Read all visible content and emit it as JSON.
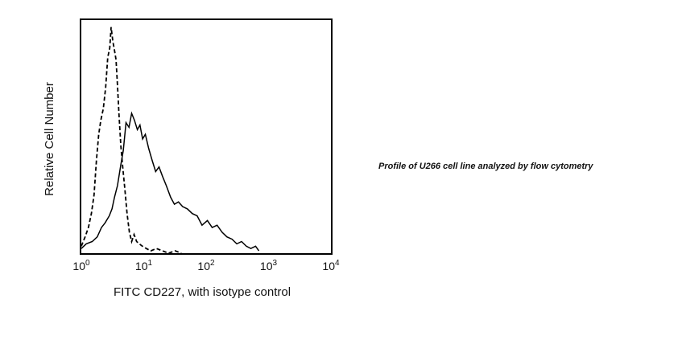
{
  "chart_data": {
    "type": "histogram",
    "xscale": "log",
    "xlim": [
      1,
      10000
    ],
    "xticks": [
      {
        "base": "10",
        "exp": "0"
      },
      {
        "base": "10",
        "exp": "1"
      },
      {
        "base": "10",
        "exp": "2"
      },
      {
        "base": "10",
        "exp": "3"
      },
      {
        "base": "10",
        "exp": "4"
      }
    ],
    "xlabel": "FITC CD227, with isotype control",
    "ylabel": "Relative Cell Number",
    "ylim": [
      0,
      100
    ],
    "series": [
      {
        "style": "solid",
        "color": "#000000",
        "points": [
          [
            1.0,
            2
          ],
          [
            1.2,
            4
          ],
          [
            1.5,
            5
          ],
          [
            1.8,
            7
          ],
          [
            2.1,
            11
          ],
          [
            2.4,
            13
          ],
          [
            2.8,
            16
          ],
          [
            3.1,
            19
          ],
          [
            3.4,
            24
          ],
          [
            3.8,
            29
          ],
          [
            4.3,
            38
          ],
          [
            4.7,
            44
          ],
          [
            5.2,
            56
          ],
          [
            5.8,
            54
          ],
          [
            6.4,
            60
          ],
          [
            7.1,
            57
          ],
          [
            7.9,
            53
          ],
          [
            8.7,
            55
          ],
          [
            9.6,
            49
          ],
          [
            10.6,
            51
          ],
          [
            12,
            45
          ],
          [
            13.6,
            40
          ],
          [
            15.5,
            35
          ],
          [
            17.6,
            37
          ],
          [
            20,
            33
          ],
          [
            23,
            29
          ],
          [
            27,
            24
          ],
          [
            31,
            21
          ],
          [
            36,
            22
          ],
          [
            42,
            20
          ],
          [
            50,
            19
          ],
          [
            60,
            17
          ],
          [
            72,
            16
          ],
          [
            86,
            12
          ],
          [
            105,
            14
          ],
          [
            125,
            11
          ],
          [
            150,
            12
          ],
          [
            180,
            9
          ],
          [
            215,
            7
          ],
          [
            260,
            6
          ],
          [
            310,
            4
          ],
          [
            370,
            5
          ],
          [
            440,
            3
          ],
          [
            520,
            2
          ],
          [
            620,
            3
          ],
          [
            700,
            1
          ]
        ]
      },
      {
        "style": "dashed",
        "color": "#000000",
        "points": [
          [
            1.0,
            3
          ],
          [
            1.15,
            7
          ],
          [
            1.3,
            11
          ],
          [
            1.45,
            17
          ],
          [
            1.6,
            25
          ],
          [
            1.75,
            40
          ],
          [
            1.9,
            51
          ],
          [
            2.05,
            57
          ],
          [
            2.25,
            62
          ],
          [
            2.45,
            71
          ],
          [
            2.65,
            84
          ],
          [
            2.85,
            88
          ],
          [
            3.0,
            97
          ],
          [
            3.2,
            91
          ],
          [
            3.4,
            87
          ],
          [
            3.6,
            83
          ],
          [
            3.8,
            72
          ],
          [
            4.0,
            60
          ],
          [
            4.3,
            46
          ],
          [
            4.6,
            37
          ],
          [
            5.0,
            27
          ],
          [
            5.4,
            17
          ],
          [
            5.9,
            9
          ],
          [
            6.4,
            5
          ],
          [
            7.0,
            8
          ],
          [
            7.7,
            5
          ],
          [
            8.5,
            4
          ],
          [
            9.5,
            3
          ],
          [
            11,
            2
          ],
          [
            13,
            1
          ],
          [
            16,
            2
          ],
          [
            20,
            1
          ],
          [
            25,
            0
          ],
          [
            32,
            1
          ],
          [
            40,
            0
          ]
        ]
      }
    ]
  },
  "caption": "Profile of U266 cell line analyzed by flow cytometry"
}
